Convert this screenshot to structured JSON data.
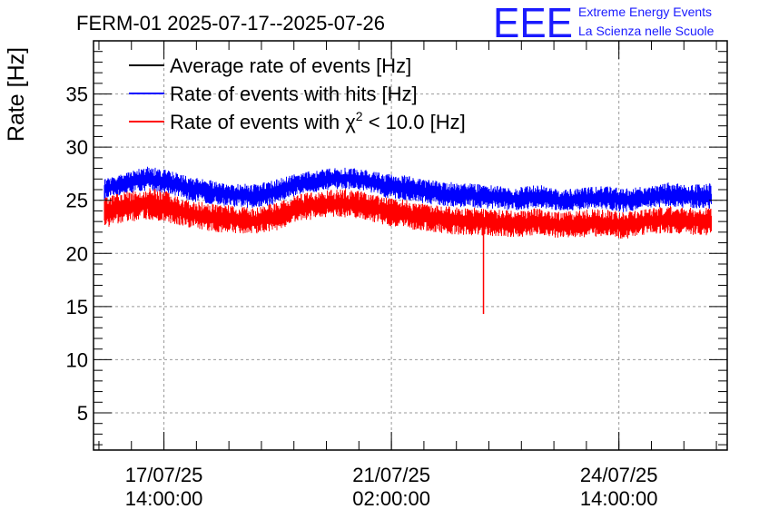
{
  "header": {
    "title": "FERM-01 2025-07-17--2025-07-26",
    "logo_text": "EEE",
    "logo_line1": "Extreme Energy Events",
    "logo_line2": "La Scienza nelle Scuole"
  },
  "chart_data": {
    "type": "line",
    "title": "FERM-01 2025-07-17--2025-07-26",
    "ylabel": "Rate [Hz]",
    "xlabel": "",
    "ylim": [
      1.5,
      40
    ],
    "y_ticks": [
      5,
      10,
      15,
      20,
      25,
      30,
      35
    ],
    "x_axis": "time",
    "x_start": "2025-07-16 12:00:00",
    "x_end": "2025-07-26 06:00:00",
    "x_ticks": [
      {
        "date": "17/07/25",
        "time": "14:00:00",
        "t": "2025-07-17 14:00:00"
      },
      {
        "date": "21/07/25",
        "time": "02:00:00",
        "t": "2025-07-21 02:00:00"
      },
      {
        "date": "24/07/25",
        "time": "14:00:00",
        "t": "2025-07-24 14:00:00"
      }
    ],
    "grid": true,
    "legend_placement": "top-left",
    "legend": [
      {
        "label": "Average rate of events [Hz]",
        "color": "#000000"
      },
      {
        "label": "Rate of events with hits [Hz]",
        "color": "#0000ff"
      },
      {
        "label_prefix": "Rate of events with ",
        "label_symbol": "χ",
        "label_sup": "2",
        "label_suffix": " < 10.0 [Hz]",
        "color": "#ff0000"
      }
    ],
    "series": [
      {
        "name": "Rate of events with hits [Hz]",
        "color": "#0000ff",
        "x": [
          "2025-07-16 16:00",
          "2025-07-17 00:00",
          "2025-07-17 08:00",
          "2025-07-17 16:00",
          "2025-07-18 00:00",
          "2025-07-18 08:00",
          "2025-07-18 16:00",
          "2025-07-19 00:00",
          "2025-07-19 08:00",
          "2025-07-19 16:00",
          "2025-07-20 00:00",
          "2025-07-20 08:00",
          "2025-07-20 16:00",
          "2025-07-21 00:00",
          "2025-07-21 08:00",
          "2025-07-21 16:00",
          "2025-07-22 00:00",
          "2025-07-22 08:00",
          "2025-07-22 16:00",
          "2025-07-23 00:00",
          "2025-07-23 08:00",
          "2025-07-23 16:00",
          "2025-07-24 00:00",
          "2025-07-24 08:00",
          "2025-07-24 16:00",
          "2025-07-25 00:00",
          "2025-07-25 08:00",
          "2025-07-25 16:00",
          "2025-07-26 00:00"
        ],
        "y_low": [
          25.0,
          25.6,
          25.9,
          25.6,
          24.9,
          24.6,
          24.4,
          24.2,
          24.7,
          25.6,
          25.8,
          26.1,
          25.9,
          25.2,
          25.0,
          24.6,
          24.4,
          24.3,
          24.2,
          24.0,
          24.3,
          24.0,
          24.1,
          24.2,
          23.8,
          24.3,
          24.4,
          24.2,
          24.2
        ],
        "y_high": [
          27.0,
          27.6,
          28.2,
          27.8,
          27.2,
          26.9,
          26.6,
          26.5,
          27.0,
          27.6,
          27.9,
          28.1,
          27.9,
          27.5,
          27.3,
          26.9,
          26.7,
          26.6,
          26.4,
          26.2,
          26.5,
          26.0,
          26.2,
          26.4,
          26.1,
          26.3,
          26.7,
          26.5,
          26.6
        ]
      },
      {
        "name": "Rate of events with χ2 < 10.0 [Hz]",
        "color": "#ff0000",
        "x": [
          "2025-07-16 16:00",
          "2025-07-17 00:00",
          "2025-07-17 08:00",
          "2025-07-17 16:00",
          "2025-07-18 00:00",
          "2025-07-18 08:00",
          "2025-07-18 16:00",
          "2025-07-19 00:00",
          "2025-07-19 08:00",
          "2025-07-19 16:00",
          "2025-07-20 00:00",
          "2025-07-20 08:00",
          "2025-07-20 16:00",
          "2025-07-21 00:00",
          "2025-07-21 08:00",
          "2025-07-21 16:00",
          "2025-07-22 00:00",
          "2025-07-22 08:00",
          "2025-07-22 16:00",
          "2025-07-23 00:00",
          "2025-07-23 08:00",
          "2025-07-23 16:00",
          "2025-07-24 00:00",
          "2025-07-24 08:00",
          "2025-07-24 16:00",
          "2025-07-25 00:00",
          "2025-07-25 08:00",
          "2025-07-25 16:00",
          "2025-07-26 00:00"
        ],
        "y_low": [
          22.3,
          22.9,
          23.2,
          22.8,
          22.4,
          22.0,
          21.9,
          21.8,
          22.2,
          23.0,
          23.3,
          23.4,
          23.2,
          22.6,
          22.3,
          22.0,
          21.8,
          21.7,
          21.6,
          21.5,
          21.7,
          21.4,
          21.5,
          21.6,
          21.3,
          21.8,
          21.9,
          21.7,
          21.7
        ],
        "y_high": [
          25.3,
          25.8,
          26.2,
          25.8,
          25.0,
          24.7,
          24.5,
          24.3,
          24.8,
          25.6,
          25.9,
          26.1,
          25.8,
          25.3,
          25.0,
          24.6,
          24.4,
          24.3,
          24.2,
          24.0,
          24.3,
          23.9,
          24.1,
          24.2,
          23.9,
          24.2,
          24.5,
          24.3,
          24.4
        ]
      }
    ],
    "annotations": [
      {
        "series": "Rate of events with χ2 < 10.0 [Hz]",
        "t": "2025-07-22 12:00",
        "y_min": 14.3
      }
    ]
  }
}
